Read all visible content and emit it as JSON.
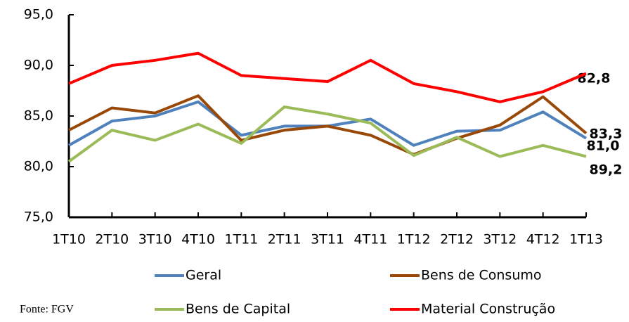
{
  "chart_data": {
    "type": "line",
    "categories": [
      "1T10",
      "2T10",
      "3T10",
      "4T10",
      "1T11",
      "2T11",
      "3T11",
      "4T11",
      "1T12",
      "2T12",
      "3T12",
      "4T12",
      "1T13"
    ],
    "series": [
      {
        "name": "Geral",
        "color": "#4f81bd",
        "values": [
          82.1,
          84.5,
          85.0,
          86.4,
          83.1,
          84.0,
          84.0,
          84.7,
          82.1,
          83.5,
          83.6,
          85.4,
          82.8
        ],
        "value_labels": [
          null,
          null,
          null,
          null,
          null,
          null,
          null,
          null,
          null,
          null,
          null,
          null,
          "82,8"
        ]
      },
      {
        "name": "Bens de Consumo",
        "color": "#984807",
        "values": [
          83.6,
          85.8,
          85.3,
          87.0,
          82.6,
          83.6,
          84.0,
          83.1,
          81.2,
          82.8,
          84.1,
          86.9,
          83.3
        ],
        "value_labels": [
          null,
          null,
          null,
          null,
          null,
          null,
          null,
          null,
          null,
          null,
          null,
          null,
          "83,3"
        ]
      },
      {
        "name": "Bens de Capital",
        "color": "#9bbb59",
        "values": [
          80.5,
          83.6,
          82.6,
          84.2,
          82.3,
          85.9,
          85.2,
          84.3,
          81.1,
          82.9,
          81.0,
          82.1,
          81.0
        ],
        "value_labels": [
          null,
          null,
          null,
          null,
          null,
          null,
          null,
          null,
          null,
          null,
          null,
          null,
          "81,0"
        ]
      },
      {
        "name": "Material Construção",
        "color": "#ff0000",
        "values": [
          88.2,
          90.0,
          90.5,
          91.2,
          89.0,
          88.7,
          88.4,
          90.5,
          88.2,
          87.4,
          86.4,
          87.4,
          89.2
        ],
        "value_labels": [
          null,
          null,
          null,
          null,
          null,
          null,
          null,
          null,
          null,
          null,
          null,
          null,
          "89,2"
        ]
      }
    ],
    "ylim": [
      75,
      95
    ],
    "yticks": [
      {
        "value": 75,
        "label": "75,0"
      },
      {
        "value": 80,
        "label": "80,0"
      },
      {
        "value": 85,
        "label": "85,0"
      },
      {
        "value": 90,
        "label": "90,0"
      },
      {
        "value": 95,
        "label": "95,0"
      }
    ],
    "source": "Fonte: FGV"
  }
}
